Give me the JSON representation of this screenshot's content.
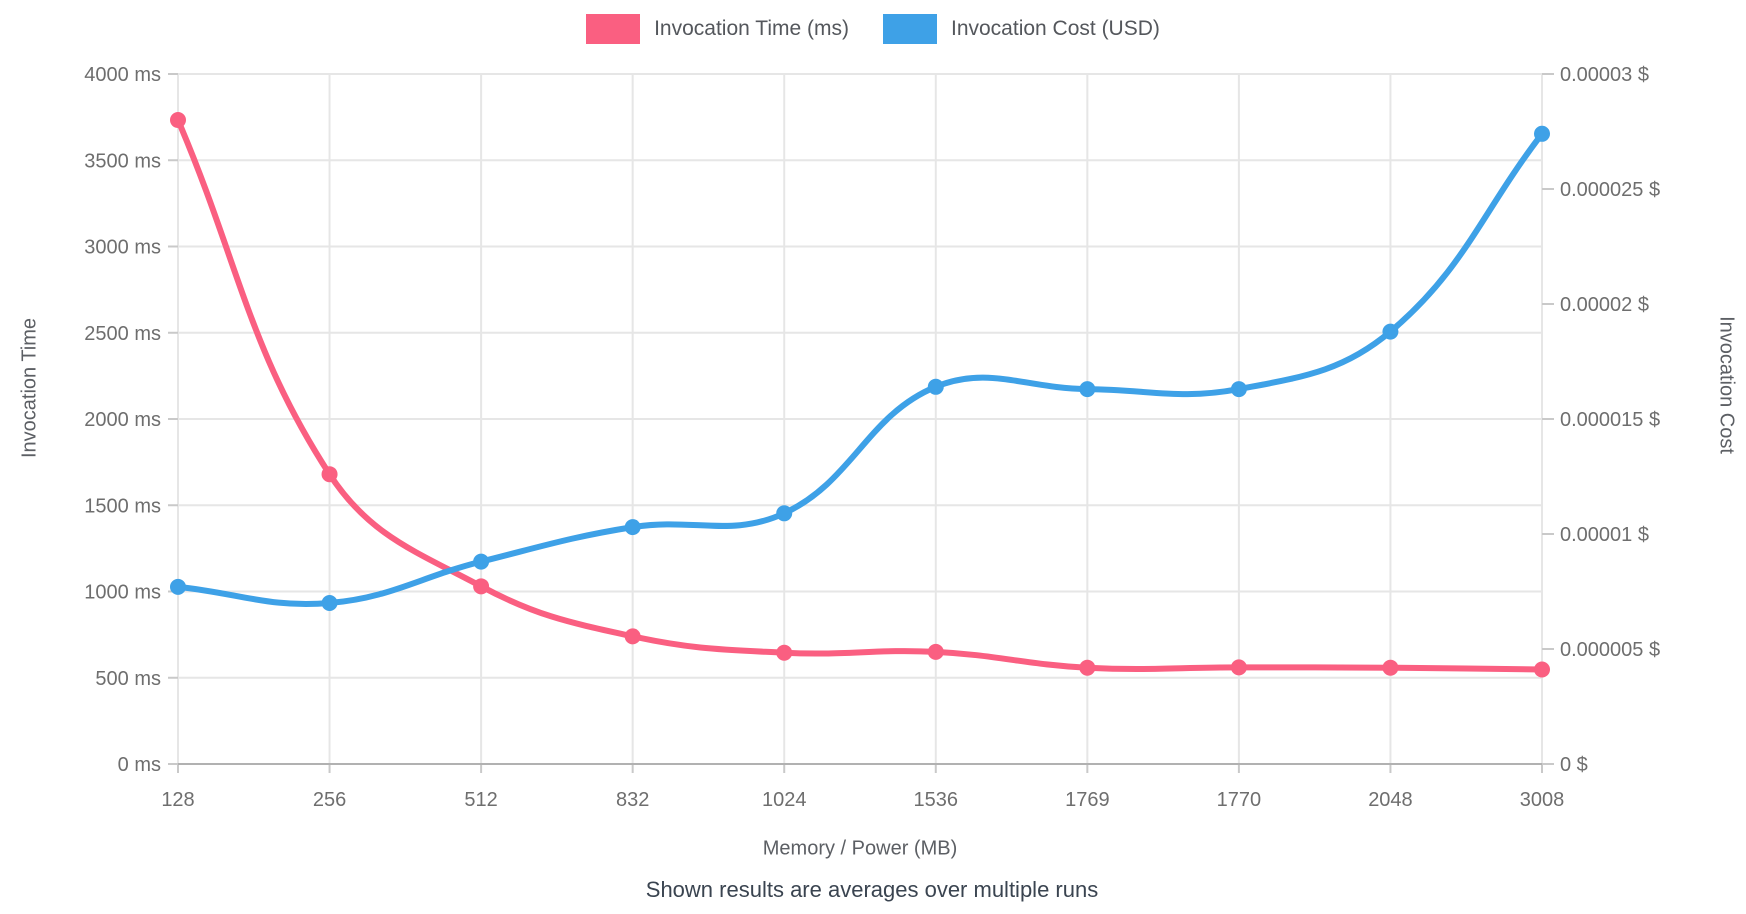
{
  "page": {
    "background": "#ffffff"
  },
  "legend": {
    "items": [
      {
        "label": "Invocation Time (ms)",
        "color": "#FA5F81"
      },
      {
        "label": "Invocation Cost (USD)",
        "color": "#3EA1E7"
      }
    ]
  },
  "axes": {
    "left": {
      "title": "Invocation Time",
      "tick_labels": [
        "0 ms",
        "500 ms",
        "1000 ms",
        "1500 ms",
        "2000 ms",
        "2500 ms",
        "3000 ms",
        "3500 ms",
        "4000 ms"
      ]
    },
    "right": {
      "title": "Invocation Cost",
      "tick_labels": [
        "0 $",
        "0.000005 $",
        "0.00001 $",
        "0.000015 $",
        "0.00002 $",
        "0.000025 $",
        "0.00003 $"
      ]
    },
    "x": {
      "title": "Memory / Power (MB)",
      "tick_labels": [
        "128",
        "256",
        "512",
        "832",
        "1024",
        "1536",
        "1769",
        "1770",
        "2048",
        "3008"
      ]
    }
  },
  "subtitle": "Shown results are averages over multiple runs",
  "chart_data": {
    "type": "line",
    "x_axis_type": "category",
    "x": [
      128,
      256,
      512,
      832,
      1024,
      1536,
      1769,
      1770,
      2048,
      3008
    ],
    "xlabel": "Memory / Power (MB)",
    "ylabel_left": "Invocation Time",
    "ylabel_right": "Invocation Cost",
    "subtitle": "Shown results are averages over multiple runs",
    "left_ylim": [
      0,
      4000
    ],
    "right_ylim": [
      0,
      3e-05
    ],
    "grid": true,
    "legend_position": "top",
    "series": [
      {
        "name": "Invocation Time (ms)",
        "axis": "left",
        "color": "#FA5F81",
        "values": [
          3733,
          1680,
          1030,
          740,
          645,
          650,
          558,
          560,
          558,
          548
        ]
      },
      {
        "name": "Invocation Cost (USD)",
        "axis": "right",
        "color": "#3EA1E7",
        "values": [
          7.7e-06,
          7e-06,
          8.8e-06,
          1.03e-05,
          1.09e-05,
          1.64e-05,
          1.63e-05,
          1.63e-05,
          1.88e-05,
          2.74e-05
        ]
      }
    ],
    "style": {
      "grid_color": "#e6e6e6",
      "axis_line_color": "#b1b1b1",
      "tick_mark_color": "#c9c9c9",
      "tick_text_color": "#6e6e6e"
    }
  }
}
